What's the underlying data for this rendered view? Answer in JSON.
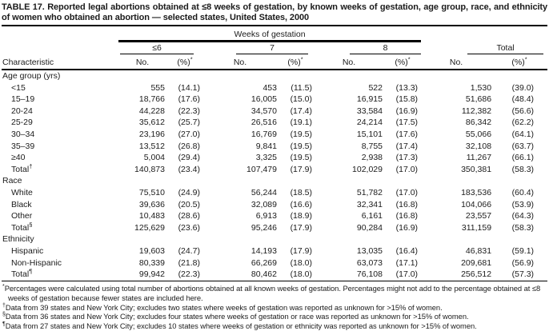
{
  "title": "TABLE 17. Reported legal abortions obtained at ≤8 weeks of gestation, by known weeks of gestation, age group, race, and ethnicity of women who obtained an abortion — selected states, United States, 2000",
  "header": {
    "spanner": "Weeks of gestation",
    "characteristic_label": "Characteristic",
    "groups": [
      {
        "label": "≤6"
      },
      {
        "label": "7"
      },
      {
        "label": "8"
      },
      {
        "label": "Total"
      }
    ],
    "no_label": "No.",
    "pct_label": "(%)",
    "pct_marker": "*"
  },
  "sections": [
    {
      "name": "Age group (yrs)",
      "rows": [
        {
          "label": "<15",
          "cells": [
            "555",
            "(14.1)",
            "453",
            "(11.5)",
            "522",
            "(13.3)",
            "1,530",
            "(39.0)"
          ]
        },
        {
          "label": "15–19",
          "cells": [
            "18,766",
            "(17.6)",
            "16,005",
            "(15.0)",
            "16,915",
            "(15.8)",
            "51,686",
            "(48.4)"
          ]
        },
        {
          "label": "20-24",
          "cells": [
            "44,228",
            "(22.3)",
            "34,570",
            "(17.4)",
            "33,584",
            "(16.9)",
            "112,382",
            "(56.6)"
          ]
        },
        {
          "label": "25-29",
          "cells": [
            "35,612",
            "(25.7)",
            "26,516",
            "(19.1)",
            "24,214",
            "(17.5)",
            "86,342",
            "(62.2)"
          ]
        },
        {
          "label": "30–34",
          "cells": [
            "23,196",
            "(27.0)",
            "16,769",
            "(19.5)",
            "15,101",
            "(17.6)",
            "55,066",
            "(64.1)"
          ]
        },
        {
          "label": "35–39",
          "cells": [
            "13,512",
            "(26.8)",
            "9,841",
            "(19.5)",
            "8,755",
            "(17.4)",
            "32,108",
            "(63.7)"
          ]
        },
        {
          "label": "≥40",
          "cells": [
            "5,004",
            "(29.4)",
            "3,325",
            "(19.5)",
            "2,938",
            "(17.3)",
            "11,267",
            "(66.1)"
          ]
        },
        {
          "label": "Total",
          "marker": "†",
          "cells": [
            "140,873",
            "(23.4)",
            "107,479",
            "(17.9)",
            "102,029",
            "(17.0)",
            "350,381",
            "(58.3)"
          ]
        }
      ]
    },
    {
      "name": "Race",
      "rows": [
        {
          "label": "White",
          "cells": [
            "75,510",
            "(24.9)",
            "56,244",
            "(18.5)",
            "51,782",
            "(17.0)",
            "183,536",
            "(60.4)"
          ]
        },
        {
          "label": "Black",
          "cells": [
            "39,636",
            "(20.5)",
            "32,089",
            "(16.6)",
            "32,341",
            "(16.8)",
            "104,066",
            "(53.9)"
          ]
        },
        {
          "label": "Other",
          "cells": [
            "10,483",
            "(28.6)",
            "6,913",
            "(18.9)",
            "6,161",
            "(16.8)",
            "23,557",
            "(64.3)"
          ]
        },
        {
          "label": "Total",
          "marker": "§",
          "cells": [
            "125,629",
            "(23.6)",
            "95,246",
            "(17.9)",
            "90,284",
            "(16.9)",
            "311,159",
            "(58.3)"
          ]
        }
      ]
    },
    {
      "name": "Ethnicity",
      "rows": [
        {
          "label": "Hispanic",
          "cells": [
            "19,603",
            "(24.7)",
            "14,193",
            "(17.9)",
            "13,035",
            "(16.4)",
            "46,831",
            "(59.1)"
          ]
        },
        {
          "label": "Non-Hispanic",
          "cells": [
            "80,339",
            "(21.8)",
            "66,269",
            "(18.0)",
            "63,073",
            "(17.1)",
            "209,681",
            "(56.9)"
          ]
        },
        {
          "label": "Total",
          "marker": "¶",
          "cells": [
            "99,942",
            "(22.3)",
            "80,462",
            "(18.0)",
            "76,108",
            "(17.0)",
            "256,512",
            "(57.3)"
          ]
        }
      ]
    }
  ],
  "footnotes": [
    {
      "marker": "*",
      "text": "Percentages were calculated using total number of abortions obtained at all known weeks of gestation. Percentages might not add to the percentage obtained at ≤8 weeks of gestation because fewer states are included here."
    },
    {
      "marker": "†",
      "text": "Data from 39 states and New York City; excludes two states where weeks of gestation was reported as unknown for >15% of women."
    },
    {
      "marker": "§",
      "text": "Data from 36 states and New York City; excludes four states where weeks of gestation or race was reported as unknown for >15% of women."
    },
    {
      "marker": "¶",
      "text": "Data from 27 states and New York City; excludes 10 states where weeks of gestation or ethnicity was reported as unknown for >15% of women."
    }
  ]
}
